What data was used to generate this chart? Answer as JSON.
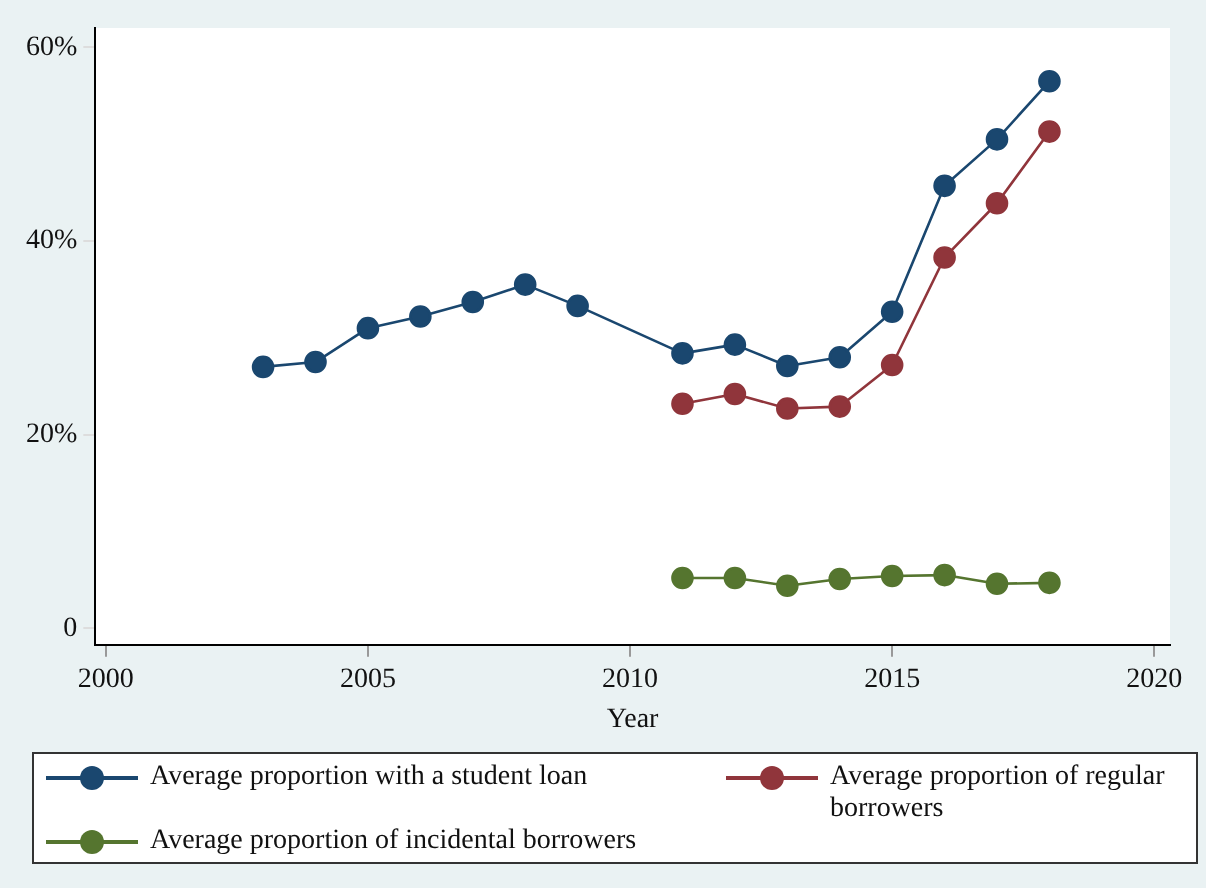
{
  "chart_data": {
    "type": "line",
    "xlabel": "Year",
    "x": [
      2003,
      2004,
      2005,
      2006,
      2007,
      2008,
      2009,
      2011,
      2012,
      2013,
      2014,
      2015,
      2016,
      2017,
      2018
    ],
    "series": [
      {
        "name": "Average proportion with a student loan",
        "color": "#1a476f",
        "values": [
          27,
          27.5,
          31,
          32.2,
          33.7,
          35.5,
          33.3,
          28.4,
          29.3,
          27.1,
          28,
          32.7,
          45.7,
          50.5,
          56.5
        ]
      },
      {
        "name": "Average proportion of regular borrowers",
        "color": "#90353b",
        "x": [
          2011,
          2012,
          2013,
          2014,
          2015,
          2016,
          2017,
          2018
        ],
        "values": [
          23.2,
          24.2,
          22.7,
          22.9,
          27.2,
          38.3,
          43.9,
          51.3
        ]
      },
      {
        "name": "Average proportion of incidental borrowers",
        "color": "#55752f",
        "x": [
          2011,
          2012,
          2013,
          2014,
          2015,
          2016,
          2017,
          2018
        ],
        "values": [
          5.2,
          5.2,
          4.4,
          5.1,
          5.4,
          5.5,
          4.6,
          4.7
        ]
      }
    ],
    "xlim": [
      1999.8,
      2020.3
    ],
    "xticks": [
      2000,
      2005,
      2010,
      2015,
      2020
    ],
    "ylim": [
      -1.7,
      62
    ],
    "yticks": [
      {
        "value": 0,
        "label": "0"
      },
      {
        "value": 20,
        "label": "20%"
      },
      {
        "value": 40,
        "label": "40%"
      },
      {
        "value": 60,
        "label": "60%"
      }
    ],
    "grid": false,
    "legend": "bottom",
    "marker": "circle",
    "line_style": "solid"
  }
}
